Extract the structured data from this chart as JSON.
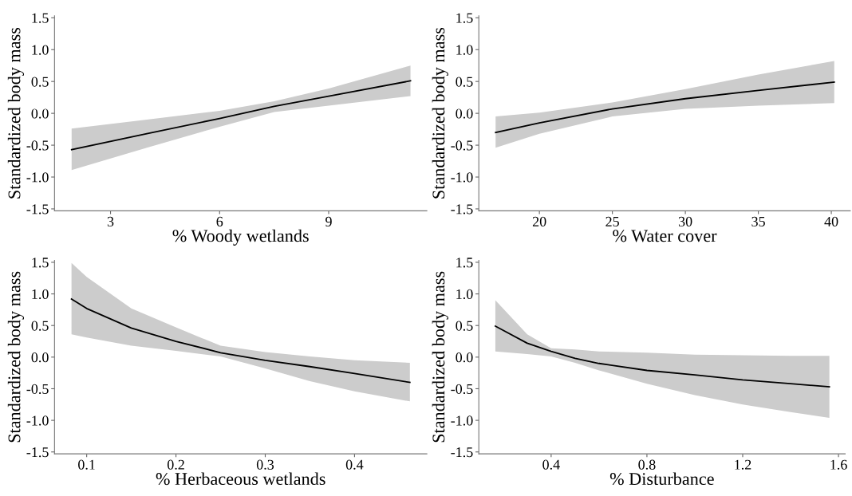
{
  "chart_data": [
    {
      "type": "line",
      "xlabel": "% Woody wetlands",
      "ylabel": "Standardized body mass",
      "xlim": [
        1.46,
        11.7
      ],
      "xticks": [
        3,
        6,
        9
      ],
      "ylim": [
        -1.53,
        1.53
      ],
      "yticks": [
        {
          "value": -1.5,
          "label": "-1.5"
        },
        {
          "value": -1,
          "label": "-1.0"
        },
        {
          "value": -0.5,
          "label": "-0.5"
        },
        {
          "value": 0,
          "label": "0.0"
        },
        {
          "value": 0.5,
          "label": "0.5"
        },
        {
          "value": 1,
          "label": "1.0"
        },
        {
          "value": 1.5,
          "label": "1.5"
        }
      ],
      "grid": false,
      "series": [
        {
          "color": "#000000",
          "x": [
            1.93,
            4,
            6,
            7.5,
            9,
            11.25
          ],
          "values": [
            -0.57,
            -0.32,
            -0.08,
            0.11,
            0.27,
            0.51
          ],
          "lower": [
            -0.89,
            -0.54,
            -0.21,
            0.02,
            0.12,
            0.27
          ],
          "upper": [
            -0.24,
            -0.1,
            0.04,
            0.19,
            0.39,
            0.75
          ]
        }
      ]
    },
    {
      "type": "line",
      "xlabel": "% Water cover",
      "ylabel": "Standardized body mass",
      "xlim": [
        15.85,
        41.3
      ],
      "xticks": [
        20,
        25,
        30,
        35,
        40
      ],
      "ylim": [
        -1.53,
        1.53
      ],
      "yticks": [
        {
          "value": -1.5,
          "label": "-1.5"
        },
        {
          "value": -1,
          "label": "-1.0"
        },
        {
          "value": -0.5,
          "label": "-0.5"
        },
        {
          "value": 0,
          "label": "0.0"
        },
        {
          "value": 0.5,
          "label": "0.5"
        },
        {
          "value": 1,
          "label": "1.0"
        },
        {
          "value": 1.5,
          "label": "1.5"
        }
      ],
      "grid": false,
      "series": [
        {
          "color": "#000000",
          "x": [
            17,
            20,
            25,
            30,
            35,
            40.2
          ],
          "values": [
            -0.3,
            -0.15,
            0.07,
            0.23,
            0.36,
            0.49
          ],
          "lower": [
            -0.54,
            -0.32,
            -0.05,
            0.07,
            0.12,
            0.16
          ],
          "upper": [
            -0.05,
            0.01,
            0.17,
            0.38,
            0.61,
            0.82
          ]
        }
      ]
    },
    {
      "type": "line",
      "xlabel": "% Herbaceous wetlands",
      "ylabel": "Standardized body mass",
      "xlim": [
        0.064,
        0.481
      ],
      "xticks": [
        0.1,
        0.2,
        0.3,
        0.4
      ],
      "ylim": [
        -1.53,
        1.53
      ],
      "yticks": [
        {
          "value": -1.5,
          "label": "-1.5"
        },
        {
          "value": -1,
          "label": "-1.0"
        },
        {
          "value": -0.5,
          "label": "-0.5"
        },
        {
          "value": 0,
          "label": "0.0"
        },
        {
          "value": 0.5,
          "label": "0.5"
        },
        {
          "value": 1,
          "label": "1.0"
        },
        {
          "value": 1.5,
          "label": "1.5"
        }
      ],
      "grid": false,
      "series": [
        {
          "color": "#000000",
          "x": [
            0.083,
            0.1,
            0.15,
            0.2,
            0.25,
            0.3,
            0.35,
            0.4,
            0.462
          ],
          "values": [
            0.92,
            0.77,
            0.46,
            0.25,
            0.07,
            -0.05,
            -0.15,
            -0.26,
            -0.4
          ],
          "lower": [
            0.36,
            0.31,
            0.18,
            0.1,
            0.01,
            -0.18,
            -0.38,
            -0.54,
            -0.7
          ],
          "upper": [
            1.49,
            1.27,
            0.77,
            0.47,
            0.18,
            0.08,
            0.01,
            -0.05,
            -0.09
          ]
        }
      ]
    },
    {
      "type": "line",
      "xlabel": "% Disturbance",
      "ylabel": "Standardized body mass",
      "xlim": [
        0.098,
        1.628
      ],
      "xticks": [
        0.4,
        0.8,
        1.2,
        1.6
      ],
      "ylim": [
        -1.53,
        1.53
      ],
      "yticks": [
        {
          "value": -1.5,
          "label": "-1.5"
        },
        {
          "value": -1,
          "label": "-1.0"
        },
        {
          "value": -0.5,
          "label": "-0.5"
        },
        {
          "value": 0,
          "label": "0.0"
        },
        {
          "value": 0.5,
          "label": "0.5"
        },
        {
          "value": 1,
          "label": "1.0"
        },
        {
          "value": 1.5,
          "label": "1.5"
        }
      ],
      "grid": false,
      "series": [
        {
          "color": "#000000",
          "x": [
            0.167,
            0.3,
            0.4,
            0.5,
            0.6,
            0.8,
            1.0,
            1.2,
            1.4,
            1.562
          ],
          "values": [
            0.49,
            0.22,
            0.09,
            -0.02,
            -0.1,
            -0.21,
            -0.28,
            -0.36,
            -0.42,
            -0.47
          ],
          "lower": [
            0.09,
            0.05,
            0.01,
            -0.09,
            -0.21,
            -0.42,
            -0.6,
            -0.75,
            -0.87,
            -0.96
          ],
          "upper": [
            0.9,
            0.36,
            0.14,
            0.12,
            0.09,
            0.07,
            0.04,
            0.03,
            0.02,
            0.02
          ]
        }
      ]
    }
  ]
}
